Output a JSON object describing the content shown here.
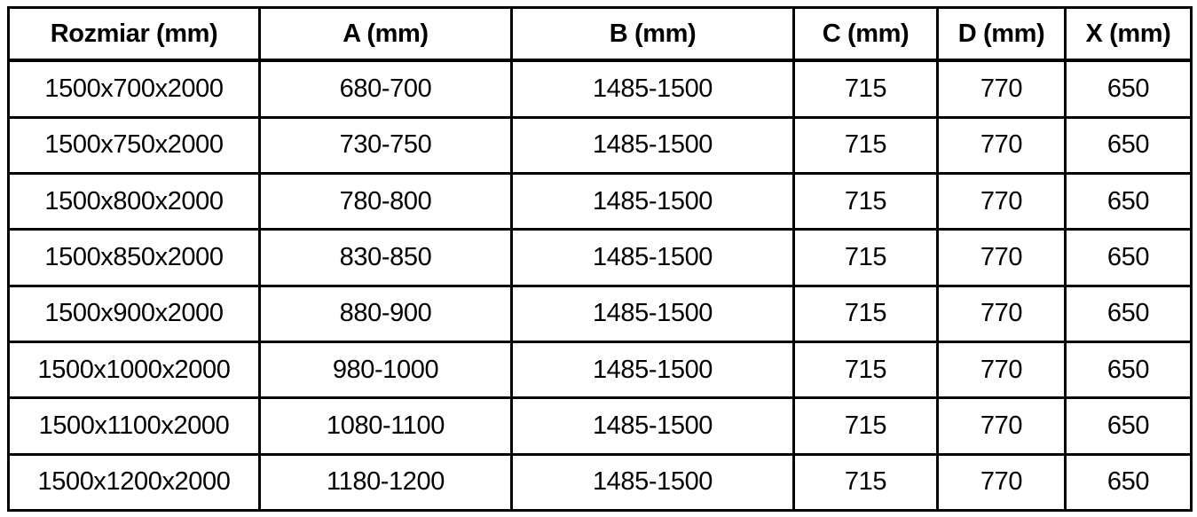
{
  "chart_data": {
    "type": "table",
    "title": "",
    "columns": [
      "Rozmiar (mm)",
      "A (mm)",
      "B (mm)",
      "C (mm)",
      "D (mm)",
      "X (mm)"
    ],
    "rows": [
      [
        "1500x700x2000",
        "680-700",
        "1485-1500",
        "715",
        "770",
        "650"
      ],
      [
        "1500x750x2000",
        "730-750",
        "1485-1500",
        "715",
        "770",
        "650"
      ],
      [
        "1500x800x2000",
        "780-800",
        "1485-1500",
        "715",
        "770",
        "650"
      ],
      [
        "1500x850x2000",
        "830-850",
        "1485-1500",
        "715",
        "770",
        "650"
      ],
      [
        "1500x900x2000",
        "880-900",
        "1485-1500",
        "715",
        "770",
        "650"
      ],
      [
        "1500x1000x2000",
        "980-1000",
        "1485-1500",
        "715",
        "770",
        "650"
      ],
      [
        "1500x1100x2000",
        "1080-1100",
        "1485-1500",
        "715",
        "770",
        "650"
      ],
      [
        "1500x1200x2000",
        "1180-1200",
        "1485-1500",
        "715",
        "770",
        "650"
      ]
    ]
  },
  "colors": {
    "border": "#000000",
    "text": "#000000",
    "background": "#ffffff"
  }
}
